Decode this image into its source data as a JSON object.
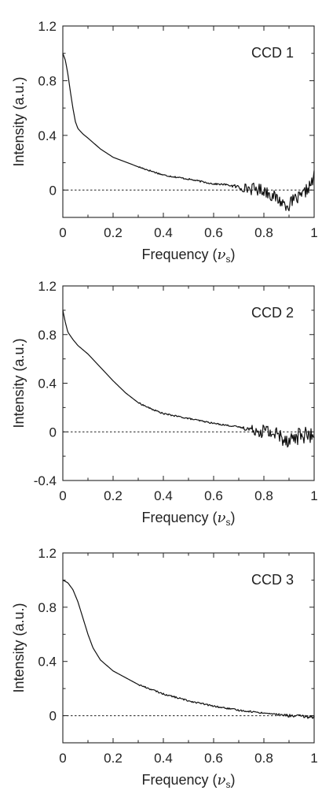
{
  "chart_data": [
    {
      "type": "line",
      "title": "CCD 1",
      "xlabel": "Frequency (",
      "xlabel_symbol": "ν",
      "xlabel_subscript": "s",
      "xlabel_close": ")",
      "ylabel": "Intensity (a.u.)",
      "xlim": [
        0,
        1
      ],
      "ylim": [
        -0.2,
        1.2
      ],
      "xticks": [
        0,
        0.2,
        0.4,
        0.6,
        0.8,
        1
      ],
      "xtick_labels": [
        "0",
        "0.2",
        "0.4",
        "0.6",
        "0.8",
        "1"
      ],
      "yticks": [
        0,
        0.4,
        0.8,
        1.2
      ],
      "ytick_labels": [
        "0",
        "0.4",
        "0.8",
        "1.2"
      ],
      "zero_line": "dotted",
      "noise_onset": 0.65,
      "noise_amplitude": 0.045,
      "series": [
        {
          "x": [
            0,
            0.01,
            0.02,
            0.03,
            0.04,
            0.05,
            0.06,
            0.08,
            0.1,
            0.15,
            0.2,
            0.3,
            0.4,
            0.5,
            0.6,
            0.65,
            0.7,
            0.75,
            0.8,
            0.85,
            0.88,
            0.9,
            0.92,
            0.95,
            0.97,
            0.99,
            1.0
          ],
          "y": [
            1.0,
            0.95,
            0.85,
            0.72,
            0.6,
            0.5,
            0.45,
            0.41,
            0.38,
            0.3,
            0.24,
            0.17,
            0.11,
            0.08,
            0.045,
            0.04,
            0.02,
            0.01,
            0.0,
            -0.06,
            -0.1,
            -0.11,
            -0.07,
            -0.05,
            0.0,
            0.05,
            0.1
          ]
        }
      ]
    },
    {
      "type": "line",
      "title": "CCD 2",
      "xlabel": "Frequency (",
      "xlabel_symbol": "ν",
      "xlabel_subscript": "s",
      "xlabel_close": ")",
      "ylabel": "Intensity (a.u.)",
      "xlim": [
        0,
        1
      ],
      "ylim": [
        -0.4,
        1.2
      ],
      "xticks": [
        0,
        0.2,
        0.4,
        0.6,
        0.8,
        1
      ],
      "xtick_labels": [
        "0",
        "0.2",
        "0.4",
        "0.6",
        "0.8",
        "1"
      ],
      "yticks": [
        -0.4,
        0,
        0.4,
        0.8,
        1.2
      ],
      "ytick_labels": [
        "-0.4",
        "0",
        "0.4",
        "0.8",
        "1.2"
      ],
      "zero_line": "dotted",
      "noise_onset": 0.7,
      "noise_amplitude": 0.07,
      "series": [
        {
          "x": [
            0,
            0.01,
            0.02,
            0.04,
            0.06,
            0.1,
            0.15,
            0.2,
            0.25,
            0.3,
            0.35,
            0.4,
            0.5,
            0.6,
            0.7,
            0.75,
            0.8,
            0.85,
            0.88,
            0.9,
            0.92,
            0.95,
            0.97,
            1.0
          ],
          "y": [
            1.0,
            0.9,
            0.82,
            0.76,
            0.71,
            0.64,
            0.53,
            0.42,
            0.32,
            0.24,
            0.19,
            0.15,
            0.11,
            0.07,
            0.04,
            0.02,
            0.01,
            -0.02,
            -0.05,
            -0.06,
            -0.05,
            -0.02,
            -0.03,
            -0.04
          ]
        }
      ]
    },
    {
      "type": "line",
      "title": "CCD 3",
      "xlabel": "Frequency (",
      "xlabel_symbol": "ν",
      "xlabel_subscript": "s",
      "xlabel_close": ")",
      "ylabel": "Intensity (a.u.)",
      "xlim": [
        0,
        1
      ],
      "ylim": [
        -0.2,
        1.2
      ],
      "xticks": [
        0,
        0.2,
        0.4,
        0.6,
        0.8,
        1
      ],
      "xtick_labels": [
        "0",
        "0.2",
        "0.4",
        "0.6",
        "0.8",
        "1"
      ],
      "yticks": [
        0,
        0.4,
        0.8,
        1.2
      ],
      "ytick_labels": [
        "0",
        "0.4",
        "0.8",
        "1.2"
      ],
      "zero_line": "dotted",
      "noise_onset": 0.8,
      "noise_amplitude": 0.012,
      "series": [
        {
          "x": [
            0,
            0.02,
            0.04,
            0.06,
            0.08,
            0.1,
            0.12,
            0.15,
            0.2,
            0.25,
            0.3,
            0.4,
            0.5,
            0.6,
            0.7,
            0.8,
            0.85,
            0.9,
            0.95,
            0.98,
            1.0
          ],
          "y": [
            1.0,
            0.98,
            0.93,
            0.84,
            0.72,
            0.6,
            0.5,
            0.41,
            0.33,
            0.28,
            0.23,
            0.16,
            0.11,
            0.07,
            0.04,
            0.02,
            0.01,
            0.0,
            -0.005,
            -0.01,
            -0.01
          ]
        }
      ]
    }
  ]
}
